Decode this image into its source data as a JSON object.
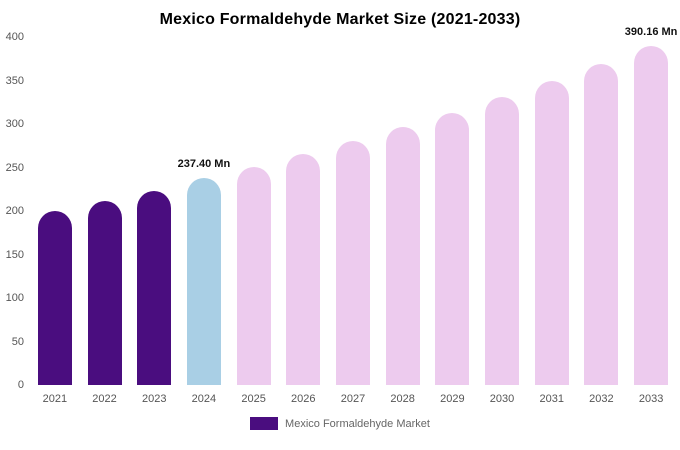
{
  "chart_data": {
    "type": "bar",
    "title": "Mexico Formaldehyde Market Size (2021-2033)",
    "categories": [
      "2021",
      "2022",
      "2023",
      "2024",
      "2025",
      "2026",
      "2027",
      "2028",
      "2029",
      "2030",
      "2031",
      "2032",
      "2033"
    ],
    "values": [
      200.1,
      211.4,
      223.4,
      237.4,
      250.9,
      265.1,
      280.2,
      296.1,
      312.9,
      330.7,
      349.5,
      369.3,
      390.16
    ],
    "unit": "Mn",
    "ylim": [
      0,
      400
    ],
    "yticks": [
      0,
      50,
      100,
      150,
      200,
      250,
      300,
      350,
      400
    ],
    "grid": false,
    "legend": [
      "Mexico Formaldehyde Market"
    ],
    "legend_position": "bottom",
    "bar_colors": {
      "historical": "#4a0d7f",
      "current": "#a9cfe5",
      "forecast": "#edcbee"
    },
    "color_roles": [
      "historical",
      "historical",
      "historical",
      "current",
      "forecast",
      "forecast",
      "forecast",
      "forecast",
      "forecast",
      "forecast",
      "forecast",
      "forecast",
      "forecast"
    ],
    "annotations": [
      {
        "category": "2024",
        "text": "237.40 Mn"
      },
      {
        "category": "2033",
        "text": "390.16 Mn"
      }
    ]
  }
}
